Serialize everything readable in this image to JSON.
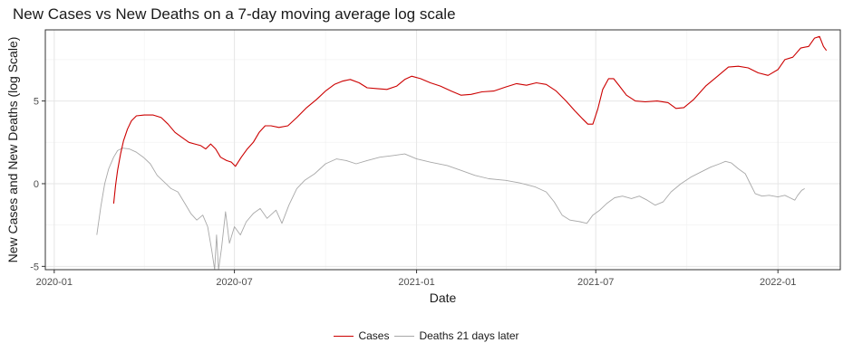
{
  "chart_data": {
    "type": "line",
    "title": "New Cases vs New Deaths on a 7-day moving average log scale",
    "xlabel": "Date",
    "ylabel": "New Cases and New Deaths (log Scale)",
    "xlim": [
      "2019-12-23",
      "2022-03-05"
    ],
    "ylim": [
      -5.2,
      9.3
    ],
    "yticks": [
      -5,
      0,
      5
    ],
    "ytick_labels": [
      "-5",
      "0",
      "5"
    ],
    "xticks": [
      "2020-01-01",
      "2020-07-01",
      "2021-01-01",
      "2021-07-01",
      "2022-01-01"
    ],
    "xtick_labels": [
      "2020-01",
      "2020-07",
      "2021-01",
      "2021-07",
      "2022-01"
    ],
    "grid": true,
    "legend_position": "bottom",
    "colors": {
      "cases": "#cc0000",
      "deaths": "#a8a8a8"
    },
    "series": [
      {
        "name": "Cases",
        "color": "#cc0000",
        "points": [
          [
            "2020-03-01",
            -1.2
          ],
          [
            "2020-03-03",
            -0.1
          ],
          [
            "2020-03-05",
            0.8
          ],
          [
            "2020-03-08",
            1.8
          ],
          [
            "2020-03-11",
            2.6
          ],
          [
            "2020-03-15",
            3.3
          ],
          [
            "2020-03-19",
            3.8
          ],
          [
            "2020-03-24",
            4.1
          ],
          [
            "2020-04-01",
            4.15
          ],
          [
            "2020-04-10",
            4.15
          ],
          [
            "2020-04-18",
            4.0
          ],
          [
            "2020-04-25",
            3.6
          ],
          [
            "2020-05-02",
            3.1
          ],
          [
            "2020-05-09",
            2.8
          ],
          [
            "2020-05-16",
            2.5
          ],
          [
            "2020-05-22",
            2.4
          ],
          [
            "2020-05-28",
            2.3
          ],
          [
            "2020-06-02",
            2.1
          ],
          [
            "2020-06-07",
            2.4
          ],
          [
            "2020-06-12",
            2.1
          ],
          [
            "2020-06-17",
            1.6
          ],
          [
            "2020-06-23",
            1.4
          ],
          [
            "2020-06-28",
            1.3
          ],
          [
            "2020-07-02",
            1.05
          ],
          [
            "2020-07-08",
            1.6
          ],
          [
            "2020-07-14",
            2.1
          ],
          [
            "2020-07-20",
            2.5
          ],
          [
            "2020-07-26",
            3.1
          ],
          [
            "2020-08-01",
            3.5
          ],
          [
            "2020-08-07",
            3.5
          ],
          [
            "2020-08-15",
            3.4
          ],
          [
            "2020-08-24",
            3.5
          ],
          [
            "2020-09-02",
            4.0
          ],
          [
            "2020-09-12",
            4.6
          ],
          [
            "2020-09-22",
            5.1
          ],
          [
            "2020-10-01",
            5.6
          ],
          [
            "2020-10-10",
            6.0
          ],
          [
            "2020-10-18",
            6.2
          ],
          [
            "2020-10-26",
            6.3
          ],
          [
            "2020-11-04",
            6.1
          ],
          [
            "2020-11-12",
            5.8
          ],
          [
            "2020-11-22",
            5.75
          ],
          [
            "2020-12-02",
            5.7
          ],
          [
            "2020-12-12",
            5.9
          ],
          [
            "2020-12-20",
            6.3
          ],
          [
            "2020-12-27",
            6.5
          ],
          [
            "2021-01-05",
            6.35
          ],
          [
            "2021-01-15",
            6.1
          ],
          [
            "2021-01-25",
            5.9
          ],
          [
            "2021-02-05",
            5.6
          ],
          [
            "2021-02-15",
            5.35
          ],
          [
            "2021-02-25",
            5.4
          ],
          [
            "2021-03-08",
            5.55
          ],
          [
            "2021-03-20",
            5.6
          ],
          [
            "2021-04-01",
            5.85
          ],
          [
            "2021-04-12",
            6.05
          ],
          [
            "2021-04-22",
            5.95
          ],
          [
            "2021-05-02",
            6.1
          ],
          [
            "2021-05-12",
            6.0
          ],
          [
            "2021-05-22",
            5.6
          ],
          [
            "2021-06-01",
            5.0
          ],
          [
            "2021-06-10",
            4.4
          ],
          [
            "2021-06-18",
            3.9
          ],
          [
            "2021-06-23",
            3.6
          ],
          [
            "2021-06-28",
            3.6
          ],
          [
            "2021-07-03",
            4.5
          ],
          [
            "2021-07-08",
            5.7
          ],
          [
            "2021-07-14",
            6.35
          ],
          [
            "2021-07-19",
            6.35
          ],
          [
            "2021-07-25",
            5.9
          ],
          [
            "2021-08-01",
            5.35
          ],
          [
            "2021-08-10",
            5.0
          ],
          [
            "2021-08-20",
            4.95
          ],
          [
            "2021-09-01",
            5.0
          ],
          [
            "2021-09-12",
            4.9
          ],
          [
            "2021-09-20",
            4.55
          ],
          [
            "2021-09-28",
            4.6
          ],
          [
            "2021-10-08",
            5.1
          ],
          [
            "2021-10-20",
            5.9
          ],
          [
            "2021-11-01",
            6.5
          ],
          [
            "2021-11-12",
            7.05
          ],
          [
            "2021-11-22",
            7.1
          ],
          [
            "2021-12-02",
            7.0
          ],
          [
            "2021-12-12",
            6.7
          ],
          [
            "2021-12-22",
            6.55
          ],
          [
            "2022-01-01",
            6.9
          ],
          [
            "2022-01-08",
            7.5
          ],
          [
            "2022-01-16",
            7.65
          ],
          [
            "2022-01-24",
            8.2
          ],
          [
            "2022-02-01",
            8.3
          ],
          [
            "2022-02-07",
            8.8
          ],
          [
            "2022-02-12",
            8.9
          ],
          [
            "2022-02-16",
            8.3
          ],
          [
            "2022-02-19",
            8.05
          ]
        ]
      },
      {
        "name": "Deaths 21 days later",
        "color": "#a8a8a8",
        "points": [
          [
            "2020-02-13",
            -3.1
          ],
          [
            "2020-02-17",
            -1.4
          ],
          [
            "2020-02-21",
            0.0
          ],
          [
            "2020-02-25",
            0.9
          ],
          [
            "2020-03-01",
            1.6
          ],
          [
            "2020-03-05",
            2.0
          ],
          [
            "2020-03-10",
            2.15
          ],
          [
            "2020-03-17",
            2.1
          ],
          [
            "2020-03-24",
            1.9
          ],
          [
            "2020-03-31",
            1.6
          ],
          [
            "2020-04-07",
            1.2
          ],
          [
            "2020-04-14",
            0.5
          ],
          [
            "2020-04-21",
            0.1
          ],
          [
            "2020-04-28",
            -0.3
          ],
          [
            "2020-05-05",
            -0.5
          ],
          [
            "2020-05-12",
            -1.2
          ],
          [
            "2020-05-18",
            -1.8
          ],
          [
            "2020-05-24",
            -2.2
          ],
          [
            "2020-05-30",
            -1.9
          ],
          [
            "2020-06-04",
            -2.6
          ],
          [
            "2020-06-08",
            -4.0
          ],
          [
            "2020-06-11",
            -5.2
          ],
          [
            "2020-06-13",
            -3.1
          ],
          [
            "2020-06-15",
            -5.2
          ],
          [
            "2020-06-18",
            -3.9
          ],
          [
            "2020-06-22",
            -1.7
          ],
          [
            "2020-06-26",
            -3.6
          ],
          [
            "2020-07-01",
            -2.6
          ],
          [
            "2020-07-07",
            -3.1
          ],
          [
            "2020-07-13",
            -2.3
          ],
          [
            "2020-07-20",
            -1.8
          ],
          [
            "2020-07-27",
            -1.5
          ],
          [
            "2020-08-03",
            -2.1
          ],
          [
            "2020-08-12",
            -1.6
          ],
          [
            "2020-08-18",
            -2.4
          ],
          [
            "2020-08-25",
            -1.3
          ],
          [
            "2020-09-02",
            -0.3
          ],
          [
            "2020-09-10",
            0.2
          ],
          [
            "2020-09-20",
            0.6
          ],
          [
            "2020-10-01",
            1.2
          ],
          [
            "2020-10-12",
            1.5
          ],
          [
            "2020-10-22",
            1.4
          ],
          [
            "2020-11-01",
            1.2
          ],
          [
            "2020-11-12",
            1.4
          ],
          [
            "2020-11-25",
            1.6
          ],
          [
            "2020-12-08",
            1.7
          ],
          [
            "2020-12-20",
            1.8
          ],
          [
            "2021-01-01",
            1.5
          ],
          [
            "2021-01-15",
            1.3
          ],
          [
            "2021-02-01",
            1.1
          ],
          [
            "2021-02-15",
            0.8
          ],
          [
            "2021-03-01",
            0.5
          ],
          [
            "2021-03-15",
            0.3
          ],
          [
            "2021-04-01",
            0.2
          ],
          [
            "2021-04-15",
            0.05
          ],
          [
            "2021-05-01",
            -0.2
          ],
          [
            "2021-05-12",
            -0.5
          ],
          [
            "2021-05-20",
            -1.1
          ],
          [
            "2021-05-28",
            -1.9
          ],
          [
            "2021-06-05",
            -2.2
          ],
          [
            "2021-06-15",
            -2.3
          ],
          [
            "2021-06-22",
            -2.4
          ],
          [
            "2021-06-28",
            -1.9
          ],
          [
            "2021-07-05",
            -1.6
          ],
          [
            "2021-07-12",
            -1.2
          ],
          [
            "2021-07-20",
            -0.85
          ],
          [
            "2021-07-28",
            -0.75
          ],
          [
            "2021-08-06",
            -0.9
          ],
          [
            "2021-08-14",
            -0.75
          ],
          [
            "2021-08-22",
            -1.0
          ],
          [
            "2021-08-30",
            -1.3
          ],
          [
            "2021-09-07",
            -1.1
          ],
          [
            "2021-09-15",
            -0.5
          ],
          [
            "2021-09-25",
            0.0
          ],
          [
            "2021-10-05",
            0.4
          ],
          [
            "2021-10-15",
            0.7
          ],
          [
            "2021-10-25",
            1.0
          ],
          [
            "2021-11-03",
            1.2
          ],
          [
            "2021-11-09",
            1.35
          ],
          [
            "2021-11-15",
            1.25
          ],
          [
            "2021-11-22",
            0.9
          ],
          [
            "2021-11-29",
            0.6
          ],
          [
            "2021-12-04",
            0.0
          ],
          [
            "2021-12-09",
            -0.6
          ],
          [
            "2021-12-16",
            -0.75
          ],
          [
            "2021-12-23",
            -0.7
          ],
          [
            "2022-01-01",
            -0.8
          ],
          [
            "2022-01-08",
            -0.7
          ],
          [
            "2022-01-13",
            -0.85
          ],
          [
            "2022-01-18",
            -1.0
          ],
          [
            "2022-01-21",
            -0.7
          ],
          [
            "2022-01-25",
            -0.4
          ],
          [
            "2022-01-28",
            -0.3
          ]
        ]
      }
    ]
  }
}
